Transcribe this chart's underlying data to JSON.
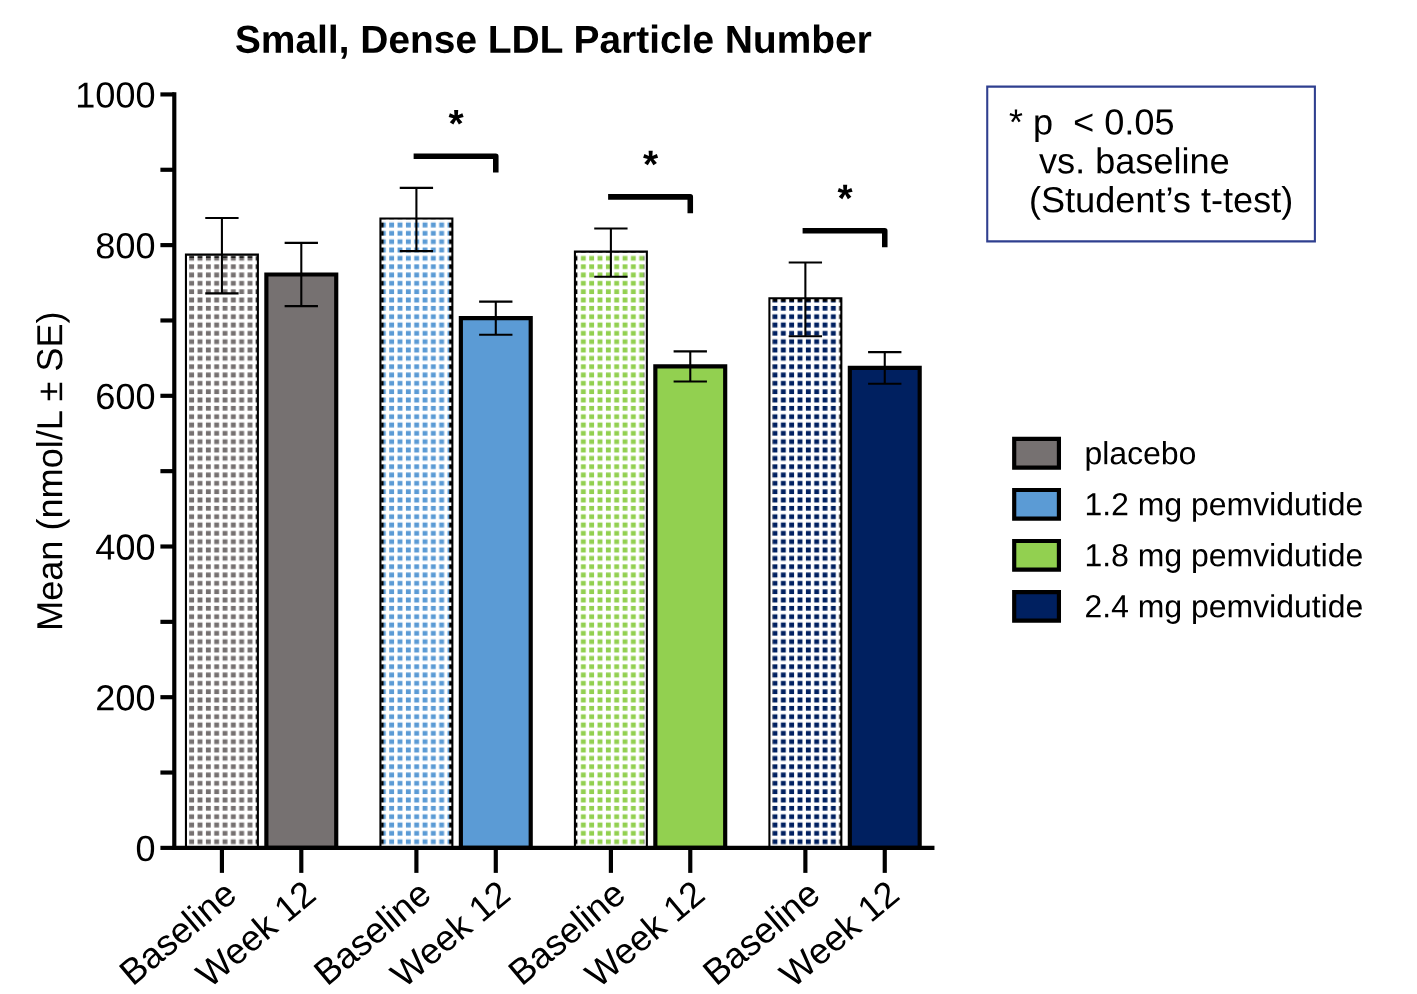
{
  "chart_data": {
    "type": "bar",
    "title": "Small, Dense LDL Particle Number",
    "ylabel": "Mean (nmol/L ± SE)",
    "categories": [
      "Baseline",
      "Week 12",
      "Baseline",
      "Week 12",
      "Baseline",
      "Week 12",
      "Baseline",
      "Week 12"
    ],
    "series": [
      {
        "name": "placebo",
        "color": "#767171",
        "values": [
          786,
          761,
          null,
          null,
          null,
          null,
          null,
          null
        ],
        "errors": [
          50,
          42,
          null,
          null,
          null,
          null,
          null,
          null
        ]
      },
      {
        "name": "1.2 mg pemvidutide",
        "color": "#5b9bd5",
        "values": [
          null,
          null,
          834,
          703,
          null,
          null,
          null,
          null
        ],
        "errors": [
          null,
          null,
          42,
          22,
          null,
          null,
          null,
          null
        ]
      },
      {
        "name": "1.8 mg pemvidutide",
        "color": "#92d050",
        "values": [
          null,
          null,
          null,
          null,
          790,
          639,
          null,
          null
        ],
        "errors": [
          null,
          null,
          null,
          null,
          32,
          20,
          null,
          null
        ]
      },
      {
        "name": "2.4 mg pemvidutide",
        "color": "#002060",
        "values": [
          null,
          null,
          null,
          null,
          null,
          null,
          728,
          637
        ],
        "errors": [
          null,
          null,
          null,
          null,
          null,
          null,
          49,
          21
        ]
      }
    ],
    "ylim": [
      0,
      1000
    ],
    "yticks": [
      0,
      {
        "value": 100,
        "label": null
      },
      200,
      {
        "value": 300,
        "label": null
      },
      400,
      {
        "value": 500,
        "label": null
      },
      600,
      {
        "value": 700,
        "label": null
      },
      800,
      {
        "value": 900,
        "label": null
      },
      1000
    ],
    "annotations": [
      "*",
      "*",
      "*",
      "* p  < 0.05\n   vs. baseline\n  (Student’s t-test)"
    ],
    "legend": "right",
    "grid": false
  }
}
